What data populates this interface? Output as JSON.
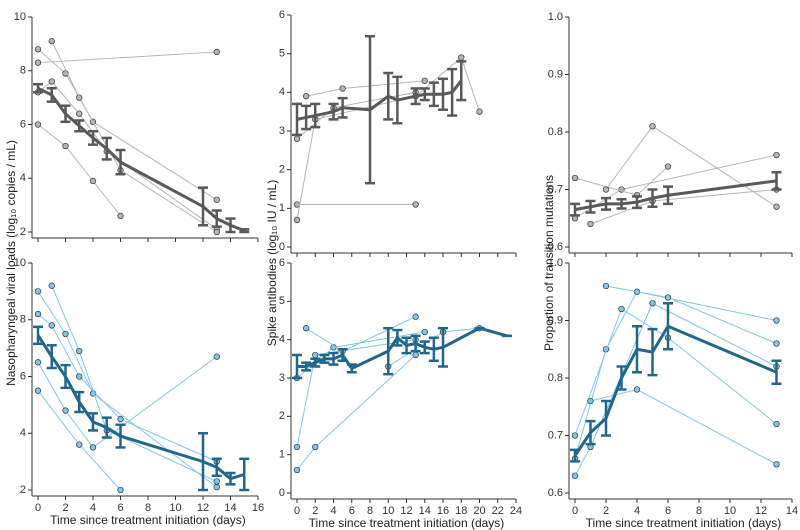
{
  "chart_data": [
    {
      "type": "line",
      "xlim": [
        0,
        16
      ],
      "ylim": [
        2,
        10
      ],
      "xticks": [
        0,
        2,
        4,
        6,
        8,
        10,
        12,
        14,
        16
      ],
      "yticks": [
        2,
        4,
        6,
        8,
        10
      ],
      "series": [
        {
          "color": "#b5b5b5",
          "x": [
            0,
            2,
            4,
            13
          ],
          "values": [
            8.8,
            7.9,
            6.1,
            3.2
          ]
        },
        {
          "color": "#b5b5b5",
          "x": [
            0,
            1,
            3,
            5,
            13
          ],
          "values": [
            7.2,
            7.6,
            6.4,
            5.0,
            2.1
          ]
        },
        {
          "color": "#b5b5b5",
          "x": [
            1,
            3,
            6,
            13
          ],
          "values": [
            9.1,
            7.0,
            4.3,
            2.0
          ]
        },
        {
          "color": "#b5b5b5",
          "x": [
            0,
            2,
            4,
            6
          ],
          "values": [
            6.0,
            5.2,
            3.9,
            2.6
          ]
        },
        {
          "color": "#b5b5b5",
          "x": [
            0,
            13
          ],
          "values": [
            8.3,
            8.7
          ]
        },
        {
          "color": "#595959",
          "x": [
            0,
            1,
            2,
            3,
            4,
            5,
            6,
            12,
            13,
            14,
            15
          ],
          "values": [
            7.35,
            7.1,
            6.4,
            5.95,
            5.5,
            5.1,
            4.6,
            2.95,
            2.5,
            2.25,
            2.05
          ],
          "errors": [
            0.15,
            0.25,
            0.3,
            0.2,
            0.25,
            0.4,
            0.45,
            0.7,
            0.3,
            0.25,
            0.05
          ]
        }
      ]
    },
    {
      "type": "line",
      "xlim": [
        0,
        24
      ],
      "ylim": [
        0,
        6
      ],
      "xticks": [
        0,
        2,
        4,
        6,
        8,
        10,
        12,
        14,
        16,
        18,
        20,
        22,
        24
      ],
      "yticks": [
        0,
        1,
        2,
        3,
        4,
        5,
        6
      ],
      "series": [
        {
          "color": "#b5b5b5",
          "x": [
            0,
            4,
            13
          ],
          "values": [
            2.8,
            3.6,
            4.0
          ]
        },
        {
          "color": "#b5b5b5",
          "x": [
            0,
            13
          ],
          "values": [
            1.1,
            1.1
          ]
        },
        {
          "color": "#b5b5b5",
          "x": [
            0,
            2,
            13
          ],
          "values": [
            0.7,
            3.3,
            3.9
          ]
        },
        {
          "color": "#b5b5b5",
          "x": [
            1,
            5,
            14
          ],
          "values": [
            3.9,
            4.1,
            4.3
          ]
        },
        {
          "color": "#b5b5b5",
          "x": [
            13,
            18,
            20
          ],
          "values": [
            3.9,
            4.9,
            3.5
          ]
        },
        {
          "color": "#595959",
          "x": [
            0,
            1,
            2,
            4,
            5,
            8,
            10,
            11,
            13,
            14,
            15,
            16,
            17,
            18
          ],
          "values": [
            3.3,
            3.35,
            3.4,
            3.5,
            3.6,
            3.55,
            3.9,
            3.8,
            3.9,
            3.95,
            3.95,
            3.95,
            4.0,
            4.3
          ],
          "errors": [
            0.4,
            0.3,
            0.3,
            0.2,
            0.25,
            1.9,
            0.6,
            0.6,
            0.2,
            0.15,
            0.3,
            0.4,
            0.6,
            0.5
          ]
        }
      ]
    },
    {
      "type": "line",
      "xlim": [
        0,
        14
      ],
      "ylim": [
        0.6,
        1
      ],
      "xticks": [
        0,
        2,
        4,
        6,
        8,
        10,
        12,
        14
      ],
      "yticks": [
        0.6,
        0.7,
        0.8,
        0.9,
        {
          "value": 1,
          "label": "1.0"
        }
      ],
      "series": [
        {
          "color": "#b5b5b5",
          "x": [
            0,
            3,
            13
          ],
          "values": [
            0.65,
            0.7,
            0.76
          ]
        },
        {
          "color": "#b5b5b5",
          "x": [
            0,
            4,
            6
          ],
          "values": [
            0.72,
            0.69,
            0.74
          ]
        },
        {
          "color": "#b5b5b5",
          "x": [
            1,
            5,
            13
          ],
          "values": [
            0.64,
            0.68,
            0.7
          ]
        },
        {
          "color": "#b5b5b5",
          "x": [
            2,
            5,
            13
          ],
          "values": [
            0.7,
            0.81,
            0.67
          ]
        },
        {
          "color": "#595959",
          "x": [
            0,
            1,
            2,
            3,
            4,
            5,
            6,
            13
          ],
          "values": [
            0.665,
            0.67,
            0.675,
            0.675,
            0.678,
            0.685,
            0.69,
            0.715
          ],
          "errors": [
            0.01,
            0.01,
            0.01,
            0.008,
            0.01,
            0.015,
            0.015,
            0.015
          ]
        }
      ]
    },
    {
      "type": "line",
      "xlim": [
        0,
        16
      ],
      "ylim": [
        2,
        10
      ],
      "xticks": [
        0,
        2,
        4,
        6,
        8,
        10,
        12,
        14,
        16
      ],
      "yticks": [
        2,
        4,
        6,
        8,
        10
      ],
      "xlabel": "Time since treatment initiation (days)",
      "series": [
        {
          "color": "#7fc6ee",
          "x": [
            0,
            2,
            4,
            13
          ],
          "values": [
            9.0,
            7.5,
            5.4,
            2.1
          ]
        },
        {
          "color": "#7fc6ee",
          "x": [
            0,
            1,
            3,
            6,
            13
          ],
          "values": [
            8.2,
            7.8,
            6.0,
            4.5,
            3.0
          ]
        },
        {
          "color": "#7fc6ee",
          "x": [
            1,
            3,
            5,
            13
          ],
          "values": [
            9.2,
            6.9,
            4.1,
            2.3
          ]
        },
        {
          "color": "#7fc6ee",
          "x": [
            0,
            2,
            4,
            13
          ],
          "values": [
            6.5,
            4.8,
            3.5,
            6.7
          ]
        },
        {
          "color": "#7fc6ee",
          "x": [
            0,
            3,
            6
          ],
          "values": [
            5.5,
            3.6,
            2.0
          ]
        },
        {
          "color": "#22678a",
          "x": [
            0,
            1,
            2,
            3,
            4,
            5,
            6,
            12,
            13,
            14,
            15
          ],
          "values": [
            7.45,
            6.7,
            6.0,
            5.1,
            4.4,
            4.2,
            3.9,
            3.0,
            2.8,
            2.4,
            2.55
          ],
          "errors": [
            0.3,
            0.4,
            0.4,
            0.35,
            0.3,
            0.35,
            0.4,
            1.0,
            0.3,
            0.2,
            0.55
          ]
        }
      ]
    },
    {
      "type": "line",
      "xlim": [
        0,
        24
      ],
      "ylim": [
        0,
        6
      ],
      "xticks": [
        0,
        2,
        4,
        6,
        8,
        10,
        12,
        14,
        16,
        18,
        20,
        22,
        24
      ],
      "yticks": [
        0,
        1,
        2,
        3,
        4,
        5,
        6
      ],
      "xlabel": "Time since treatment initiation (days)",
      "series": [
        {
          "color": "#7fc6ee",
          "x": [
            0,
            2,
            13
          ],
          "values": [
            1.2,
            3.6,
            4.0
          ]
        },
        {
          "color": "#7fc6ee",
          "x": [
            0,
            2,
            13
          ],
          "values": [
            0.6,
            1.2,
            3.6
          ]
        },
        {
          "color": "#7fc6ee",
          "x": [
            0,
            4,
            14
          ],
          "values": [
            3.0,
            3.8,
            4.2
          ]
        },
        {
          "color": "#7fc6ee",
          "x": [
            1,
            5,
            13
          ],
          "values": [
            4.3,
            3.7,
            4.6
          ]
        },
        {
          "color": "#7fc6ee",
          "x": [
            10,
            16,
            20
          ],
          "values": [
            3.3,
            4.2,
            4.3
          ]
        },
        {
          "color": "#22678a",
          "x": [
            0,
            1,
            2,
            3,
            4,
            5,
            6,
            10,
            11,
            12,
            13,
            14,
            15,
            16,
            20,
            23
          ],
          "values": [
            3.3,
            3.3,
            3.4,
            3.5,
            3.5,
            3.6,
            3.25,
            3.7,
            4.05,
            3.85,
            3.9,
            3.8,
            3.75,
            3.8,
            4.3,
            4.1
          ],
          "errors": [
            0.3,
            0.1,
            0.1,
            0.1,
            0.15,
            0.15,
            0.1,
            0.6,
            0.2,
            0.2,
            0.2,
            0.15,
            0.3,
            0.5,
            0,
            0
          ]
        }
      ]
    },
    {
      "type": "line",
      "xlim": [
        0,
        14
      ],
      "ylim": [
        0.6,
        1
      ],
      "xticks": [
        0,
        2,
        4,
        6,
        8,
        10,
        12,
        14
      ],
      "yticks": [
        0.6,
        0.7,
        0.8,
        0.9,
        {
          "value": 1,
          "label": "1.0"
        }
      ],
      "xlabel": "Time since treatment initiation (days)",
      "series": [
        {
          "color": "#7fc6ee",
          "x": [
            0,
            2,
            4,
            13
          ],
          "values": [
            0.66,
            0.85,
            0.95,
            0.9
          ]
        },
        {
          "color": "#7fc6ee",
          "x": [
            0,
            3,
            6,
            13
          ],
          "values": [
            0.7,
            0.92,
            0.87,
            0.72
          ]
        },
        {
          "color": "#7fc6ee",
          "x": [
            0,
            1,
            5,
            13
          ],
          "values": [
            0.63,
            0.68,
            0.93,
            0.82
          ]
        },
        {
          "color": "#7fc6ee",
          "x": [
            1,
            4,
            13
          ],
          "values": [
            0.76,
            0.78,
            0.65
          ]
        },
        {
          "color": "#7fc6ee",
          "x": [
            2,
            6,
            13
          ],
          "values": [
            0.96,
            0.94,
            0.86
          ]
        },
        {
          "color": "#22678a",
          "x": [
            0,
            1,
            2,
            3,
            4,
            5,
            6,
            13
          ],
          "values": [
            0.665,
            0.705,
            0.73,
            0.8,
            0.85,
            0.845,
            0.89,
            0.81
          ],
          "errors": [
            0.01,
            0.02,
            0.03,
            0.02,
            0.04,
            0.04,
            0.04,
            0.02
          ]
        }
      ]
    }
  ],
  "ylabels": [
    "Nasopharyngeal viral loads (log₁₀ copies / mL)",
    "Spike antibodies (log₁₀ IU / mL)",
    "Proportion of transition mutations"
  ]
}
